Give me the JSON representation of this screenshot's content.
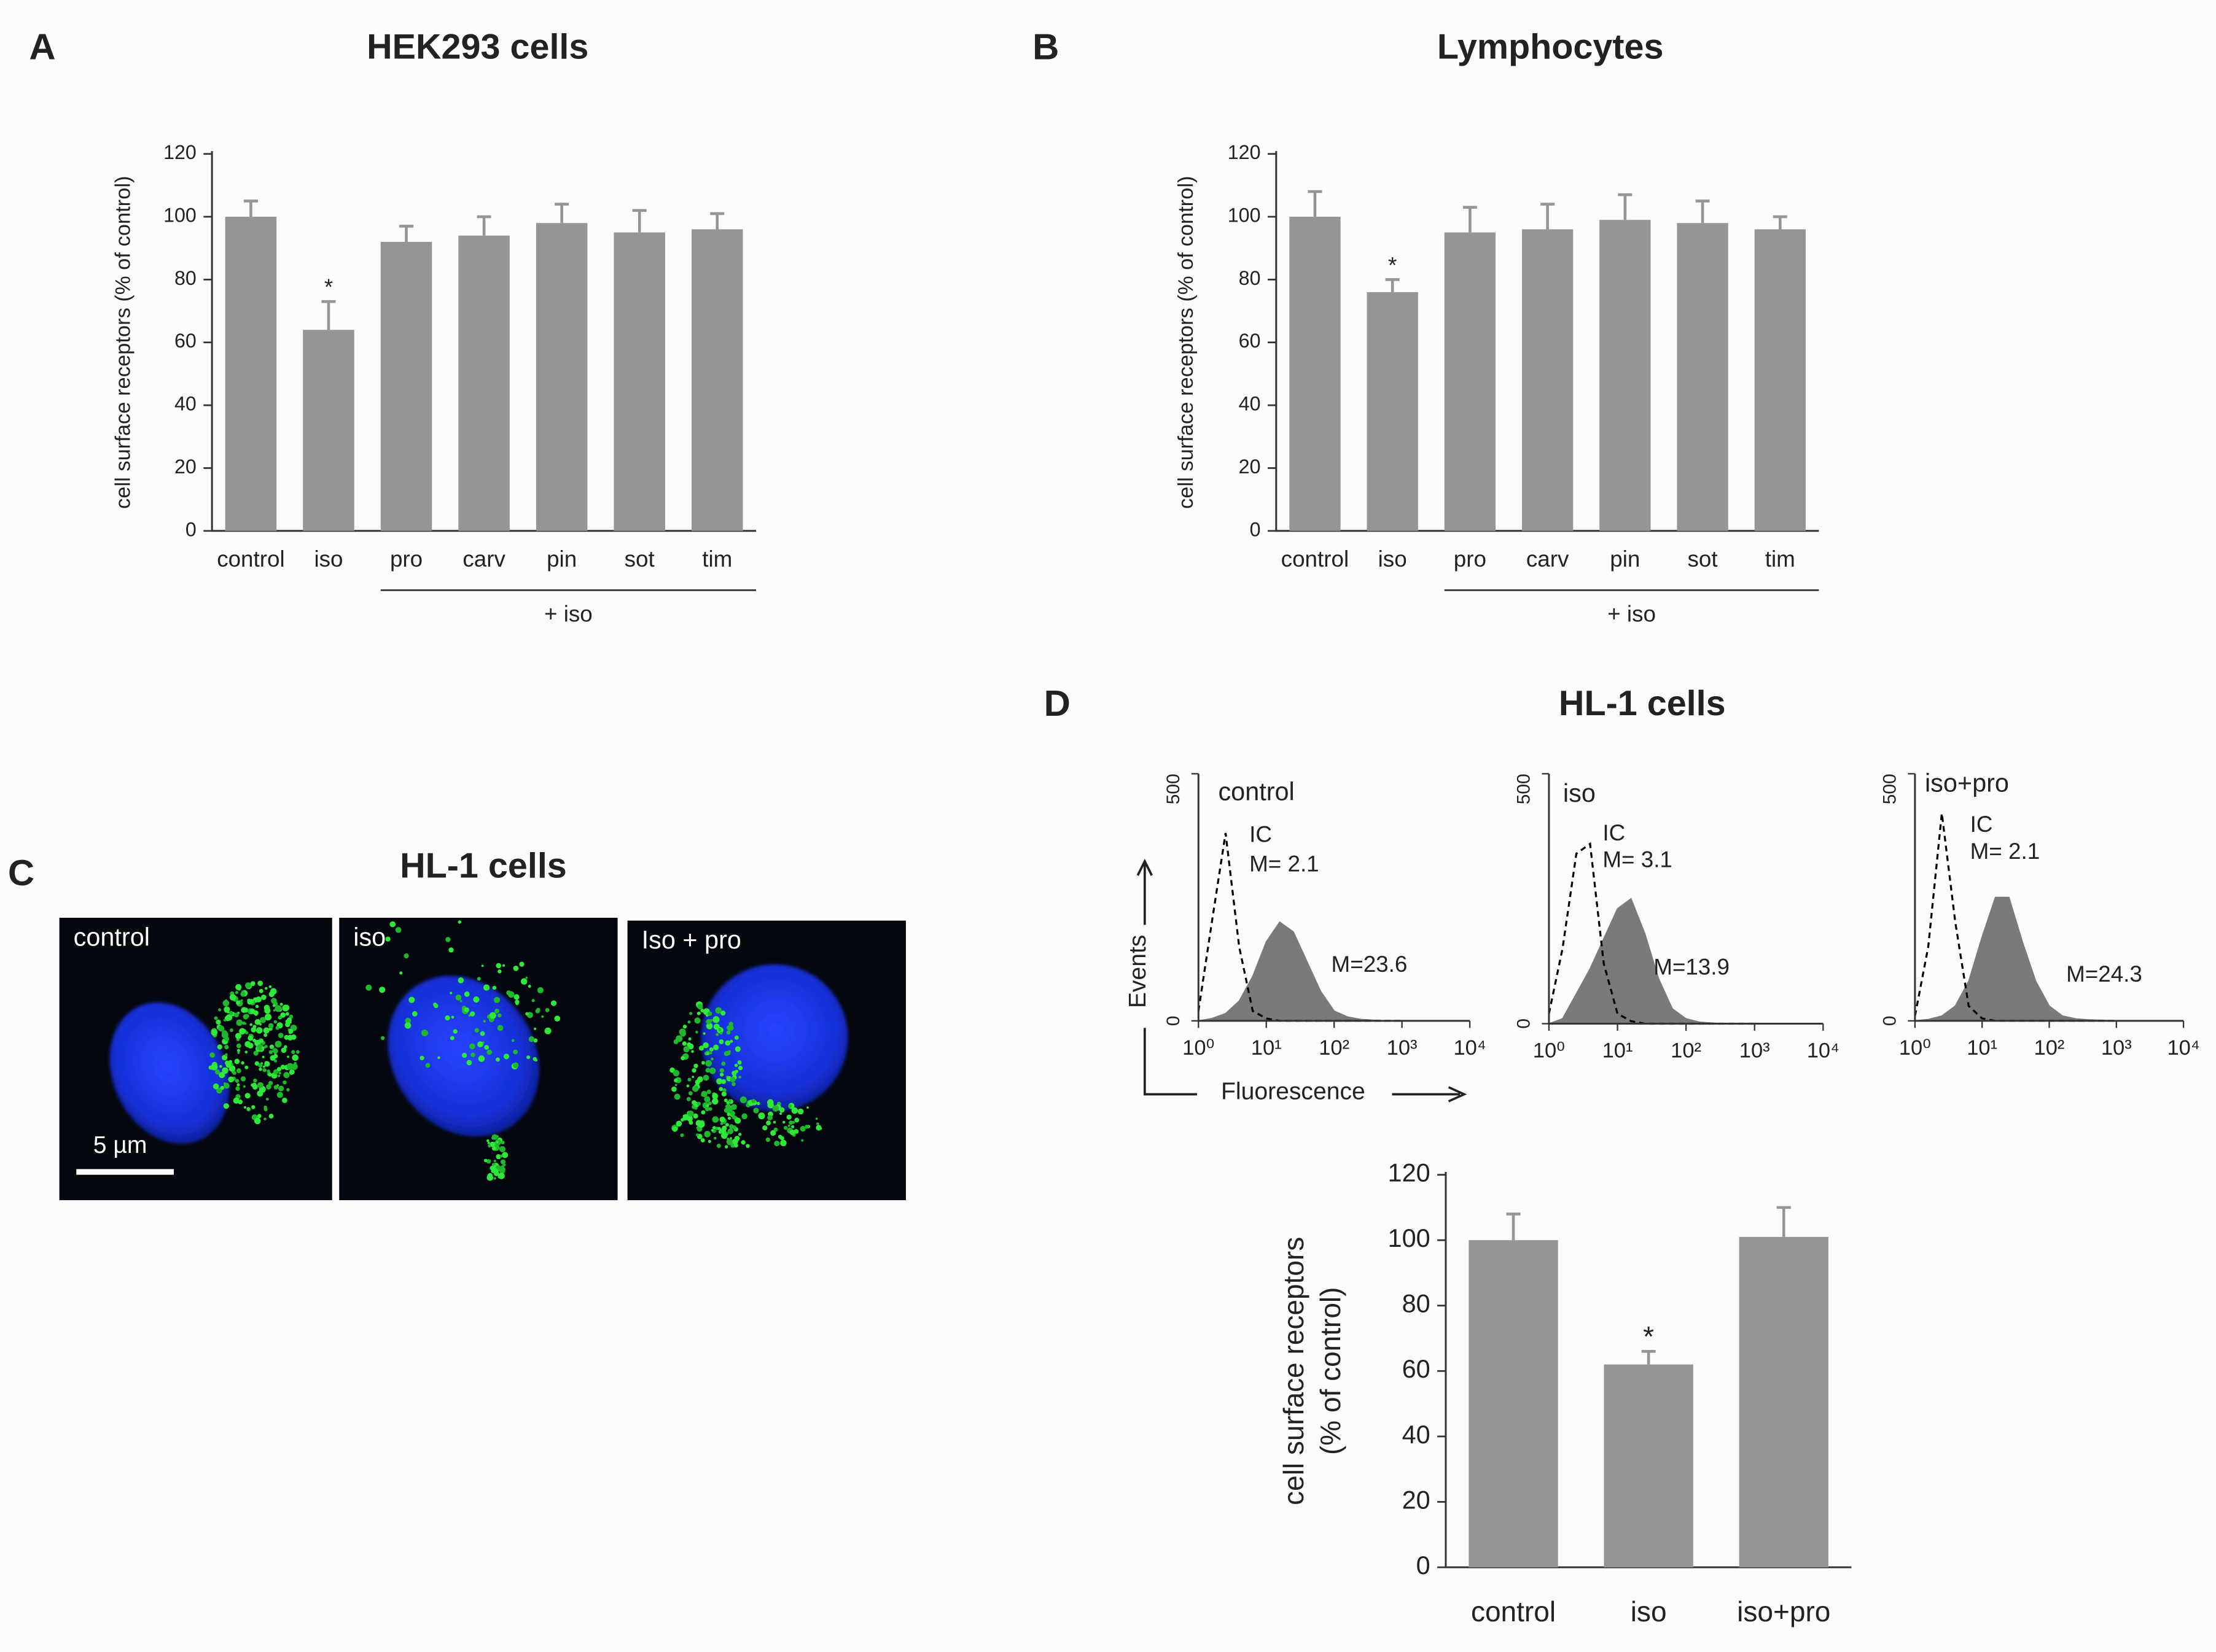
{
  "chart_data": [
    {
      "type": "bar",
      "panel_label": "A",
      "title": "HEK293 cells",
      "y_label": "cell surface receptors (% of control)",
      "categories": [
        "control",
        "iso",
        "pro",
        "carv",
        "pin",
        "sot",
        "tim"
      ],
      "values": [
        100,
        64,
        92,
        94,
        98,
        95,
        96
      ],
      "errors": [
        5,
        9,
        5,
        6,
        6,
        7,
        5
      ],
      "color": "#959595",
      "ylim": [
        0,
        120
      ],
      "yticks": [
        0,
        20,
        40,
        60,
        80,
        100,
        120
      ],
      "annotations": [
        {
          "category": "iso",
          "text": "*"
        }
      ],
      "group": {
        "label": "+ iso",
        "from": "pro",
        "to": "tim"
      }
    },
    {
      "type": "bar",
      "panel_label": "B",
      "title": "Lymphocytes",
      "y_label": "cell surface receptors (% of control)",
      "categories": [
        "control",
        "iso",
        "pro",
        "carv",
        "pin",
        "sot",
        "tim"
      ],
      "values": [
        100,
        76,
        95,
        96,
        99,
        98,
        96
      ],
      "errors": [
        8,
        4,
        8,
        8,
        8,
        7,
        4
      ],
      "color": "#959595",
      "ylim": [
        0,
        120
      ],
      "yticks": [
        0,
        20,
        40,
        60,
        80,
        100,
        120
      ],
      "annotations": [
        {
          "category": "iso",
          "text": "*"
        }
      ],
      "group": {
        "label": "+ iso",
        "from": "pro",
        "to": "tim"
      }
    },
    {
      "type": "histogram",
      "panel_label": "D",
      "title": "HL-1 cells",
      "label": "control",
      "x_label": "Fluorescence",
      "y_label": "Events",
      "log_x": true,
      "x": [
        1,
        1.58,
        2.51,
        3.98,
        6.31,
        10,
        15.8,
        25.1,
        39.8,
        63.1,
        100,
        158,
        251,
        398,
        631,
        1000
      ],
      "series": [
        {
          "name": "IC",
          "style": "dashed",
          "color": "#000000",
          "values": [
            20,
            200,
            380,
            150,
            20,
            5,
            0,
            0,
            0,
            0,
            0,
            0,
            0,
            0,
            0,
            0
          ],
          "annotation": "M= 2.1"
        },
        {
          "color": "#7a7a7a",
          "values": [
            0,
            5,
            15,
            40,
            90,
            160,
            200,
            180,
            120,
            60,
            20,
            8,
            3,
            1,
            0,
            0
          ],
          "annotation": "M=23.6"
        }
      ],
      "xlim": [
        1,
        10000
      ],
      "xticks": [
        {
          "value": 1,
          "label": "10⁰"
        },
        {
          "value": 10,
          "label": "10¹"
        },
        {
          "value": 100,
          "label": "10²"
        },
        {
          "value": 1000,
          "label": "10³"
        },
        {
          "value": 10000,
          "label": "10⁴"
        }
      ],
      "ylim": [
        0,
        500
      ],
      "yticks": [
        0,
        500
      ]
    },
    {
      "type": "histogram",
      "label": "iso",
      "log_x": true,
      "x": [
        1,
        1.58,
        2.51,
        3.98,
        6.31,
        10,
        15.8,
        25.1,
        39.8,
        63.1,
        100,
        158,
        251,
        398,
        631,
        1000
      ],
      "series": [
        {
          "name": "IC",
          "style": "dashed",
          "color": "#000000",
          "values": [
            20,
            150,
            340,
            360,
            120,
            20,
            5,
            0,
            0,
            0,
            0,
            0,
            0,
            0,
            0,
            0
          ],
          "annotation": "M= 3.1"
        },
        {
          "color": "#7a7a7a",
          "values": [
            0,
            10,
            60,
            110,
            170,
            230,
            250,
            180,
            90,
            30,
            10,
            3,
            1,
            0,
            0,
            0
          ],
          "annotation": "M=13.9"
        }
      ],
      "xlim": [
        1,
        10000
      ],
      "xticks": [
        {
          "value": 1,
          "label": "10⁰"
        },
        {
          "value": 10,
          "label": "10¹"
        },
        {
          "value": 100,
          "label": "10²"
        },
        {
          "value": 1000,
          "label": "10³"
        },
        {
          "value": 10000,
          "label": "10⁴"
        }
      ],
      "ylim": [
        0,
        500
      ],
      "yticks": [
        0,
        500
      ]
    },
    {
      "type": "histogram",
      "label": "iso+pro",
      "log_x": true,
      "x": [
        1,
        1.58,
        2.51,
        3.98,
        6.31,
        10,
        15.8,
        25.1,
        39.8,
        63.1,
        100,
        158,
        251,
        398,
        631,
        1000
      ],
      "series": [
        {
          "name": "IC",
          "style": "dashed",
          "color": "#000000",
          "values": [
            10,
            150,
            420,
            200,
            30,
            5,
            0,
            0,
            0,
            0,
            0,
            0,
            0,
            0,
            0,
            0
          ],
          "annotation": "M= 2.1"
        },
        {
          "color": "#7a7a7a",
          "values": [
            0,
            3,
            10,
            30,
            80,
            170,
            250,
            250,
            160,
            80,
            30,
            10,
            4,
            2,
            1,
            0
          ],
          "annotation": "M=24.3"
        }
      ],
      "xlim": [
        1,
        10000
      ],
      "xticks": [
        {
          "value": 1,
          "label": "10⁰"
        },
        {
          "value": 10,
          "label": "10¹"
        },
        {
          "value": 100,
          "label": "10²"
        },
        {
          "value": 1000,
          "label": "10³"
        },
        {
          "value": 10000,
          "label": "10⁴"
        }
      ],
      "ylim": [
        0,
        500
      ],
      "yticks": [
        0,
        500
      ]
    },
    {
      "type": "bar",
      "y_label": [
        "cell surface receptors",
        "(% of control)"
      ],
      "categories": [
        "control",
        "iso",
        "iso+pro"
      ],
      "values": [
        100,
        62,
        101
      ],
      "errors": [
        8,
        4,
        9
      ],
      "color": "#959595",
      "ylim": [
        0,
        120
      ],
      "yticks": [
        0,
        20,
        40,
        60,
        80,
        100,
        120
      ],
      "annotations": [
        {
          "category": "iso",
          "text": "*"
        }
      ]
    }
  ],
  "image_panel": {
    "panel_label": "C",
    "title": "HL-1 cells",
    "captions": [
      "control",
      "iso",
      "Iso + pro"
    ],
    "scale_bar": "5 µm"
  }
}
